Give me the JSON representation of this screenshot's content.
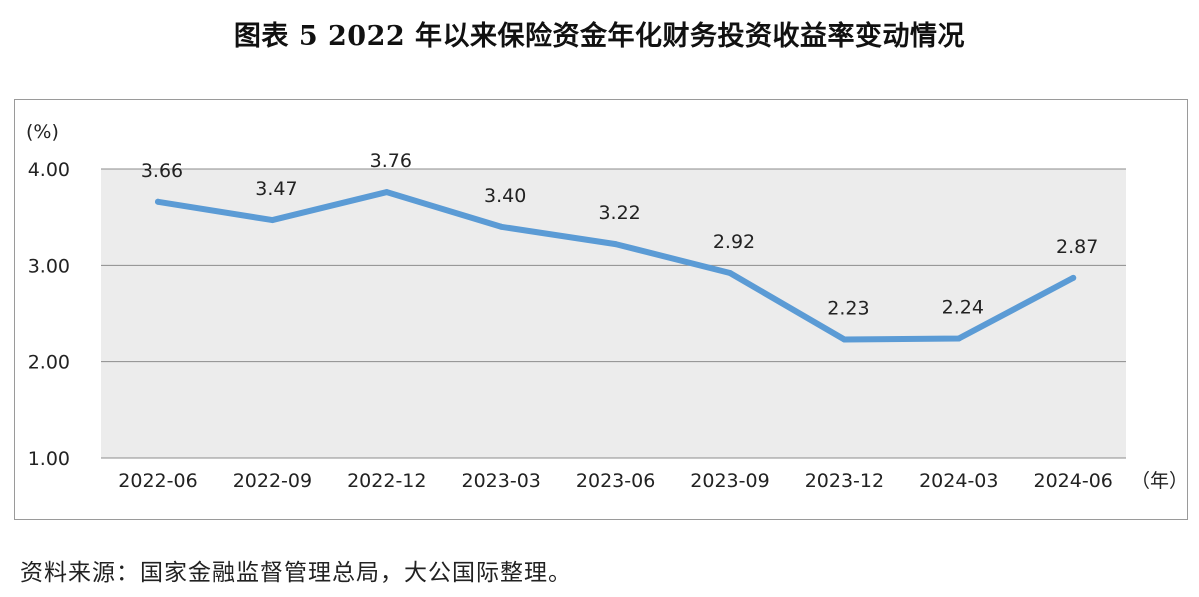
{
  "title": "图表 5  2022 年以来保险资金年化财务投资收益率变动情况",
  "source": "资料来源：国家金融监督管理总局，大公国际整理。",
  "chart_data": {
    "type": "line",
    "ylabel": "(%)",
    "xlabel": "（年）",
    "ylim": [
      1.0,
      4.0
    ],
    "yticks": [
      "1.00",
      "2.00",
      "3.00",
      "4.00"
    ],
    "grid": true,
    "line_color": "#5b9bd5",
    "plot_background": "#ececec",
    "categories": [
      "2022-06",
      "2022-09",
      "2022-12",
      "2023-03",
      "2023-06",
      "2023-09",
      "2023-12",
      "2024-03",
      "2024-06"
    ],
    "values": [
      3.66,
      3.47,
      3.76,
      3.4,
      3.22,
      2.92,
      2.23,
      2.24,
      2.87
    ],
    "data_labels": [
      "3.66",
      "3.47",
      "3.76",
      "3.40",
      "3.22",
      "2.92",
      "2.23",
      "2.24",
      "2.87"
    ]
  }
}
